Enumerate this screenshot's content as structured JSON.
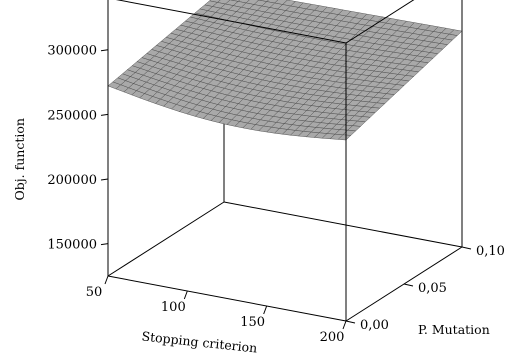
{
  "chart_data": {
    "type": "surface3d",
    "title": "",
    "x_axis": {
      "label": "Stopping criterion",
      "ticks": [
        "50",
        "100",
        "150",
        "200"
      ],
      "range": [
        50,
        200
      ]
    },
    "y_axis": {
      "label": "P. Mutation",
      "ticks": [
        "0,00",
        "0,05",
        "0,10"
      ],
      "range": [
        0.0,
        0.1
      ]
    },
    "z_axis": {
      "label": "Obj. function",
      "ticks": [
        "150000",
        "200000",
        "250000",
        "300000"
      ],
      "range": [
        125000,
        340000
      ]
    },
    "grid_resolution": [
      30,
      24
    ],
    "corner_values": {
      "x50_y0": 272000,
      "x200_y0": 265000,
      "x50_y0.1": 290000,
      "x200_y0.1": 292000
    },
    "colors": {
      "surface": "#a9a9a9",
      "mesh": "#4a4a4a",
      "box": "#000000"
    }
  }
}
